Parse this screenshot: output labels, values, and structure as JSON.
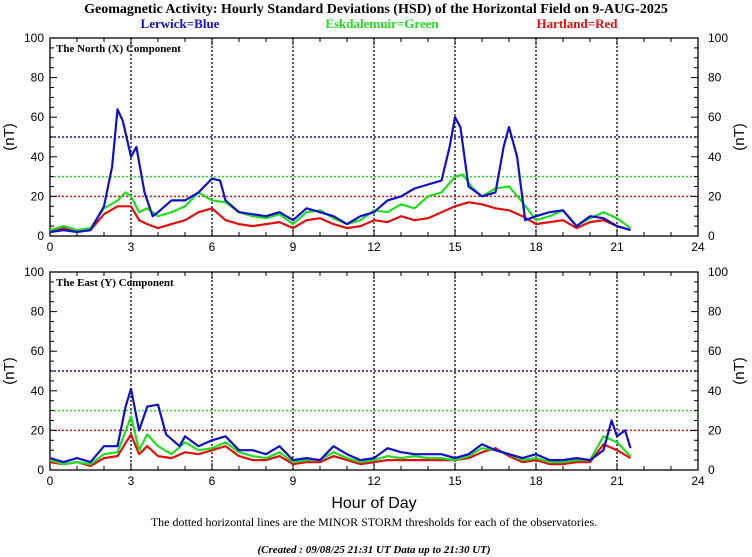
{
  "title": "Geomagnetic Activity: Hourly Standard Deviations (HSD) of the Horizontal Field on 9-AUG-2025",
  "legend": [
    {
      "label": "Lerwick=Blue",
      "color": "#1010c8"
    },
    {
      "label": "Eskdalemuir=Green",
      "color": "#22dd22"
    },
    {
      "label": "Hartland=Red",
      "color": "#e01010"
    }
  ],
  "xlabel": "Hour of Day",
  "footnote": "The dotted horizontal lines are the MINOR STORM thresholds for each of the observatories.",
  "created": "(Created : 09/08/25 21:31 UT  Data up to 21:30 UT)",
  "chart_data": [
    {
      "type": "line",
      "title": "The North (X) Component",
      "ylabel": "(nT)",
      "xlim": [
        0,
        24
      ],
      "ylim": [
        0,
        100
      ],
      "xticks": [
        "0",
        "3",
        "6",
        "9",
        "12",
        "15",
        "18",
        "21",
        "24"
      ],
      "yticks": [
        "0",
        "20",
        "40",
        "60",
        "80",
        "100"
      ],
      "thresholds": [
        {
          "value": 50,
          "color": "#1010c8"
        },
        {
          "value": 30,
          "color": "#22dd22"
        },
        {
          "value": 20,
          "color": "#e01010"
        }
      ],
      "series": [
        {
          "name": "Lerwick",
          "color": "#1010c8",
          "x": [
            0,
            0.5,
            1,
            1.5,
            2,
            2.3,
            2.5,
            2.7,
            3,
            3.2,
            3.5,
            3.8,
            4,
            4.5,
            5,
            5.5,
            6,
            6.3,
            6.5,
            7,
            7.5,
            8,
            8.5,
            9,
            9.5,
            10,
            10.5,
            11,
            11.5,
            12,
            12.5,
            13,
            13.5,
            14,
            14.5,
            14.8,
            15,
            15.2,
            15.5,
            16,
            16.5,
            16.8,
            17,
            17.3,
            17.6,
            18,
            18.5,
            19,
            19.5,
            20,
            20.5,
            21,
            21.5
          ],
          "y": [
            2,
            3,
            2,
            3,
            15,
            35,
            64,
            58,
            40,
            45,
            22,
            10,
            12,
            18,
            18,
            22,
            29,
            28,
            18,
            12,
            11,
            10,
            12,
            8,
            14,
            12,
            10,
            6,
            10,
            12,
            18,
            20,
            24,
            26,
            28,
            45,
            60,
            55,
            25,
            20,
            22,
            45,
            55,
            40,
            8,
            10,
            12,
            13,
            5,
            10,
            9,
            5,
            3
          ]
        },
        {
          "name": "Eskdalemuir",
          "color": "#22dd22",
          "x": [
            0,
            0.5,
            1,
            1.5,
            2,
            2.5,
            2.8,
            3,
            3.3,
            3.6,
            4,
            4.5,
            5,
            5.5,
            6,
            6.5,
            7,
            7.5,
            8,
            8.5,
            9,
            9.5,
            10,
            10.5,
            11,
            11.5,
            12,
            12.5,
            13,
            13.5,
            14,
            14.5,
            15,
            15.3,
            15.6,
            16,
            16.5,
            17,
            17.5,
            18,
            18.5,
            19,
            19.5,
            20,
            20.5,
            21,
            21.5
          ],
          "y": [
            3,
            5,
            3,
            4,
            14,
            18,
            22,
            20,
            12,
            14,
            10,
            12,
            15,
            22,
            18,
            17,
            12,
            10,
            9,
            11,
            6,
            12,
            13,
            9,
            6,
            8,
            13,
            12,
            16,
            14,
            20,
            22,
            30,
            31,
            25,
            20,
            24,
            25,
            17,
            8,
            10,
            13,
            5,
            9,
            12,
            9,
            4
          ]
        },
        {
          "name": "Hartland",
          "color": "#e01010",
          "x": [
            0,
            0.5,
            1,
            1.5,
            2,
            2.5,
            3,
            3.3,
            3.6,
            4,
            4.5,
            5,
            5.5,
            6,
            6.5,
            7,
            7.5,
            8,
            8.5,
            9,
            9.5,
            10,
            10.5,
            11,
            11.5,
            12,
            12.5,
            13,
            13.5,
            14,
            14.5,
            15,
            15.5,
            16,
            16.5,
            17,
            17.5,
            18,
            18.5,
            19,
            19.5,
            20,
            20.5,
            21,
            21.5
          ],
          "y": [
            2,
            4,
            3,
            3,
            11,
            15,
            15,
            8,
            6,
            4,
            6,
            8,
            12,
            14,
            8,
            6,
            5,
            6,
            7,
            4,
            8,
            9,
            6,
            4,
            5,
            8,
            7,
            10,
            8,
            9,
            12,
            15,
            17,
            16,
            14,
            13,
            10,
            6,
            7,
            8,
            4,
            7,
            8,
            5,
            3
          ]
        }
      ]
    },
    {
      "type": "line",
      "title": "The East (Y) Component",
      "ylabel": "(nT)",
      "xlim": [
        0,
        24
      ],
      "ylim": [
        0,
        100
      ],
      "xticks": [
        "0",
        "3",
        "6",
        "9",
        "12",
        "15",
        "18",
        "21",
        "24"
      ],
      "yticks": [
        "0",
        "20",
        "40",
        "60",
        "80",
        "100"
      ],
      "thresholds": [
        {
          "value": 50,
          "color": "#1010c8"
        },
        {
          "value": 30,
          "color": "#22dd22"
        },
        {
          "value": 20,
          "color": "#e01010"
        }
      ],
      "series": [
        {
          "name": "Lerwick",
          "color": "#1010c8",
          "x": [
            0,
            0.5,
            1,
            1.5,
            2,
            2.5,
            2.8,
            3,
            3.3,
            3.6,
            4,
            4.3,
            4.8,
            5,
            5.5,
            6,
            6.5,
            7,
            7.5,
            8,
            8.5,
            9,
            9.5,
            10,
            10.5,
            11,
            11.5,
            12,
            12.5,
            13,
            13.5,
            14,
            14.5,
            15,
            15.5,
            16,
            16.5,
            17,
            17.5,
            18,
            18.5,
            19,
            19.5,
            20,
            20.5,
            20.8,
            21,
            21.3,
            21.5
          ],
          "y": [
            6,
            4,
            6,
            4,
            12,
            12,
            32,
            41,
            20,
            32,
            33,
            18,
            12,
            17,
            12,
            15,
            17,
            10,
            10,
            8,
            12,
            5,
            6,
            5,
            12,
            8,
            5,
            6,
            11,
            9,
            8,
            8,
            8,
            6,
            8,
            13,
            10,
            8,
            6,
            8,
            5,
            5,
            6,
            5,
            10,
            25,
            17,
            20,
            11
          ]
        },
        {
          "name": "Eskdalemuir",
          "color": "#22dd22",
          "x": [
            0,
            0.5,
            1,
            1.5,
            2,
            2.5,
            3,
            3.3,
            3.6,
            4,
            4.5,
            5,
            5.5,
            6,
            6.5,
            7,
            7.5,
            8,
            8.5,
            9,
            9.5,
            10,
            10.5,
            11,
            11.5,
            12,
            12.5,
            13,
            13.5,
            14,
            14.5,
            15,
            15.5,
            16,
            16.5,
            17,
            17.5,
            18,
            18.5,
            19,
            19.5,
            20,
            20.5,
            21,
            21.5
          ],
          "y": [
            5,
            3,
            4,
            3,
            8,
            9,
            27,
            10,
            18,
            12,
            8,
            14,
            10,
            11,
            14,
            9,
            7,
            6,
            9,
            4,
            5,
            5,
            9,
            6,
            4,
            5,
            7,
            6,
            7,
            6,
            6,
            5,
            7,
            11,
            10,
            8,
            5,
            6,
            4,
            4,
            5,
            5,
            17,
            14,
            7
          ]
        },
        {
          "name": "Hartland",
          "color": "#e01010",
          "x": [
            0,
            0.5,
            1,
            1.5,
            2,
            2.5,
            3,
            3.3,
            3.6,
            4,
            4.5,
            5,
            5.5,
            6,
            6.5,
            7,
            7.5,
            8,
            8.5,
            9,
            9.5,
            10,
            10.5,
            11,
            11.5,
            12,
            12.5,
            13,
            13.5,
            14,
            14.5,
            15,
            15.5,
            16,
            16.5,
            17,
            17.5,
            18,
            18.5,
            19,
            19.5,
            20,
            20.5,
            21,
            21.5
          ],
          "y": [
            4,
            3,
            4,
            2,
            6,
            7,
            18,
            8,
            12,
            7,
            6,
            9,
            8,
            10,
            12,
            7,
            5,
            5,
            7,
            3,
            4,
            4,
            7,
            5,
            3,
            4,
            5,
            5,
            5,
            5,
            5,
            5,
            6,
            9,
            11,
            7,
            4,
            5,
            3,
            3,
            4,
            4,
            13,
            10,
            6
          ]
        }
      ]
    }
  ]
}
